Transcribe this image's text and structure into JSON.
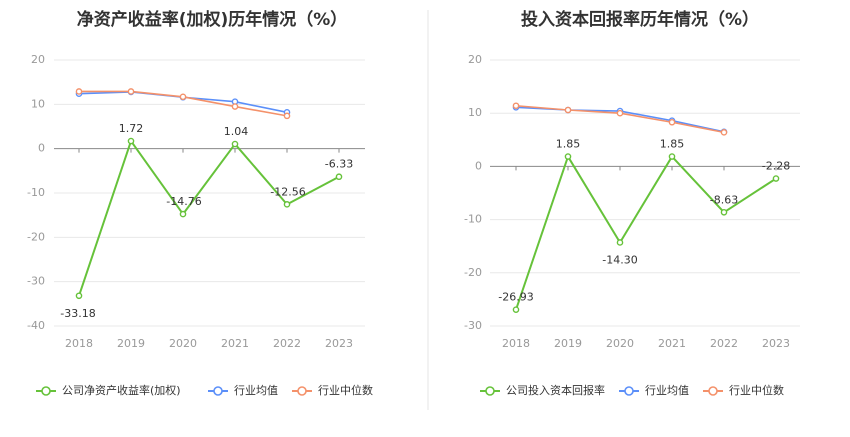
{
  "colors": {
    "company": "#66c23a",
    "average": "#5b8ff9",
    "median": "#f4916a",
    "grid": "#e8e8e8",
    "axis": "#888888",
    "divider": "#e5e5e5"
  },
  "chart_data": [
    {
      "type": "line",
      "title": "净资产收益率(加权)历年情况（%）",
      "categories": [
        "2018",
        "2019",
        "2020",
        "2021",
        "2022",
        "2023"
      ],
      "ylim": [
        -40,
        20
      ],
      "yticks": [
        20,
        10,
        0,
        -10,
        -20,
        -30,
        -40
      ],
      "grid": true,
      "legend_position": "bottom-left",
      "series": [
        {
          "name": "公司净资产收益率(加权)",
          "color_key": "company",
          "values": [
            -33.18,
            1.72,
            -14.76,
            1.04,
            -12.56,
            -6.33
          ],
          "labels": [
            "-33.18",
            "1.72",
            "-14.76",
            "1.04",
            "-12.56",
            "-6.33"
          ]
        },
        {
          "name": "行业均值",
          "color_key": "average",
          "values": [
            12.4,
            12.8,
            11.6,
            10.6,
            8.2,
            null
          ],
          "labels": []
        },
        {
          "name": "行业中位数",
          "color_key": "median",
          "values": [
            12.9,
            12.9,
            11.7,
            9.5,
            7.4,
            null
          ],
          "labels": []
        }
      ]
    },
    {
      "type": "line",
      "title": "投入资本回报率历年情况（%）",
      "categories": [
        "2018",
        "2019",
        "2020",
        "2021",
        "2022",
        "2023"
      ],
      "ylim": [
        -30,
        20
      ],
      "yticks": [
        20,
        10,
        0,
        -10,
        -20,
        -30
      ],
      "grid": true,
      "legend_position": "bottom-left",
      "series": [
        {
          "name": "公司投入资本回报率",
          "color_key": "company",
          "values": [
            -26.93,
            1.85,
            -14.3,
            1.85,
            -8.63,
            -2.28
          ],
          "labels": [
            "-26.93",
            "1.85",
            "-14.30",
            "1.85",
            "-8.63",
            "-2.28"
          ]
        },
        {
          "name": "行业均值",
          "color_key": "average",
          "values": [
            11.1,
            10.6,
            10.4,
            8.6,
            6.5,
            null
          ],
          "labels": []
        },
        {
          "name": "行业中位数",
          "color_key": "median",
          "values": [
            11.4,
            10.6,
            10.0,
            8.3,
            6.4,
            null
          ],
          "labels": []
        }
      ]
    }
  ]
}
